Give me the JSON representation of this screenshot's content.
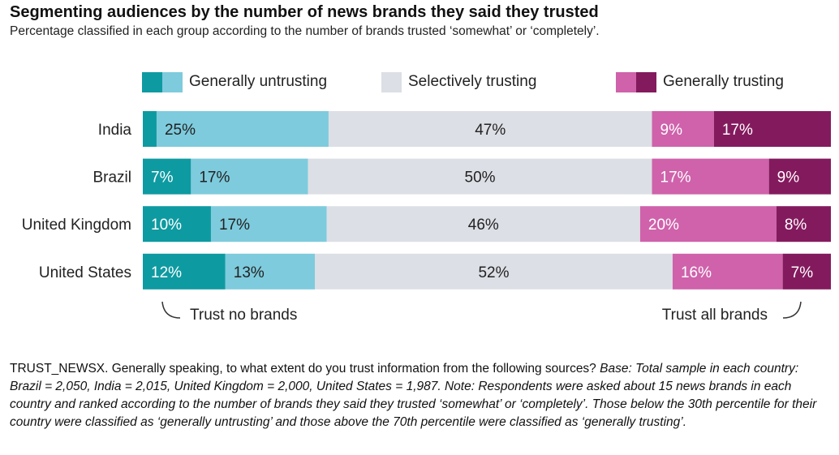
{
  "title": "Segmenting audiences by the number of news brands they said they trusted",
  "subtitle": "Percentage classified in each group according to the number of brands trusted ‘somewhat’ or ‘completely’.",
  "colors": {
    "untrusting_dark": "#0e9aa1",
    "untrusting_light": "#7ecbdd",
    "selective": "#dcdfe5",
    "trusting_light": "#cf62ab",
    "trusting_dark": "#841a5e"
  },
  "legend": [
    {
      "label": "Generally untrusting",
      "colors": [
        "#0e9aa1",
        "#7ecbdd"
      ]
    },
    {
      "label": "Selectively trusting",
      "colors": [
        "#dcdfe5"
      ]
    },
    {
      "label": "Generally trusting",
      "colors": [
        "#cf62ab",
        "#841a5e"
      ]
    }
  ],
  "annotations": {
    "left": "Trust no brands",
    "right": "Trust all brands"
  },
  "note": {
    "code": "TRUST_NEWSX.",
    "question": " Generally speaking, to what extent do you trust information from the following sources? ",
    "base_label": "Base",
    "rest": ": Total sample in each country: Brazil = 2,050, India = 2,015, United Kingdom = 2,000, United States = 1,987. Note: Respondents were asked about 15 news brands in each country and ranked according to the number of brands they said they trusted ‘somewhat’ or ‘completely’. Those below the 30th percentile for their country were classified as ‘generally untrusting’ and those above the 70th percentile were classified as ‘generally trusting’."
  },
  "chart_data": {
    "type": "bar",
    "orientation": "horizontal",
    "stacked": true,
    "categories": [
      "India",
      "Brazil",
      "United Kingdom",
      "United States"
    ],
    "series": [
      {
        "name": "Trust no brands",
        "values": [
          2,
          7,
          10,
          12
        ],
        "labels": [
          "",
          "7%",
          "10%",
          "12%"
        ],
        "color": "#0e9aa1"
      },
      {
        "name": "Generally untrusting (other)",
        "values": [
          25,
          17,
          17,
          13
        ],
        "labels": [
          "25%",
          "17%",
          "17%",
          "13%"
        ],
        "color": "#7ecbdd"
      },
      {
        "name": "Selectively trusting",
        "values": [
          47,
          50,
          46,
          52
        ],
        "labels": [
          "47%",
          "50%",
          "46%",
          "52%"
        ],
        "color": "#dcdfe5"
      },
      {
        "name": "Generally trusting (other)",
        "values": [
          9,
          17,
          20,
          16
        ],
        "labels": [
          "9%",
          "17%",
          "20%",
          "16%"
        ],
        "color": "#cf62ab"
      },
      {
        "name": "Trust all brands",
        "values": [
          17,
          9,
          8,
          7
        ],
        "labels": [
          "17%",
          "9%",
          "8%",
          "7%"
        ],
        "color": "#841a5e"
      }
    ],
    "xlim": [
      0,
      100
    ]
  }
}
